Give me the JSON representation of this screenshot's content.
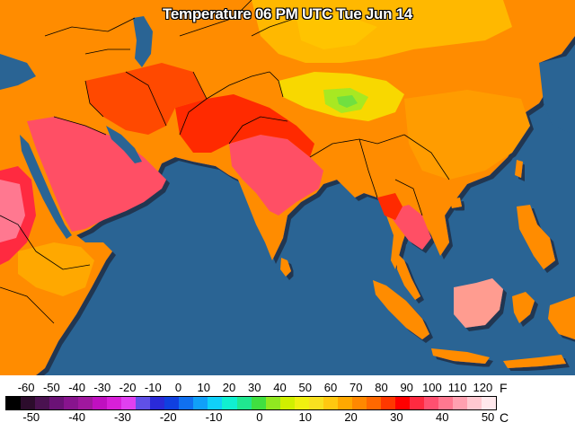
{
  "title": "Temperature 06 PM UTC Tue Jun 14",
  "legend": {
    "fahrenheit_unit": "F",
    "celsius_unit": "C",
    "fahrenheit_ticks": [
      "-60",
      "-50",
      "-40",
      "-30",
      "-20",
      "-10",
      "0",
      "10",
      "20",
      "30",
      "40",
      "50",
      "60",
      "70",
      "80",
      "90",
      "100",
      "110",
      "120"
    ],
    "fahrenheit_values": [
      -60,
      -50,
      -40,
      -30,
      -20,
      -10,
      0,
      10,
      20,
      30,
      40,
      50,
      60,
      70,
      80,
      90,
      100,
      110,
      120
    ],
    "celsius_ticks": [
      "-50",
      "-40",
      "-30",
      "-20",
      "-10",
      "0",
      "10",
      "20",
      "30",
      "40",
      "50"
    ],
    "celsius_values": [
      -50,
      -40,
      -30,
      -20,
      -10,
      0,
      10,
      20,
      30,
      40,
      50
    ],
    "scale_colors": [
      "#000000",
      "#2c0c2c",
      "#4a1250",
      "#6b1276",
      "#88148e",
      "#a0189e",
      "#c010c0",
      "#d820d8",
      "#e040f0",
      "#6050e8",
      "#2a2ad8",
      "#1040e0",
      "#1070f0",
      "#10a0f8",
      "#10d0f8",
      "#10f0d0",
      "#20e890",
      "#40e040",
      "#90e820",
      "#d0f000",
      "#f0f010",
      "#f8e020",
      "#ffc810",
      "#ffa800",
      "#ff8800",
      "#ff6800",
      "#ff3800",
      "#ff0000",
      "#ff2a40",
      "#ff5070",
      "#ff7890",
      "#ffa0b0",
      "#ffc8d0",
      "#ffe8ec"
    ]
  },
  "map_colors": {
    "ocean": "#2a6494",
    "land_base": "#ff8c00",
    "border": "#000000"
  }
}
